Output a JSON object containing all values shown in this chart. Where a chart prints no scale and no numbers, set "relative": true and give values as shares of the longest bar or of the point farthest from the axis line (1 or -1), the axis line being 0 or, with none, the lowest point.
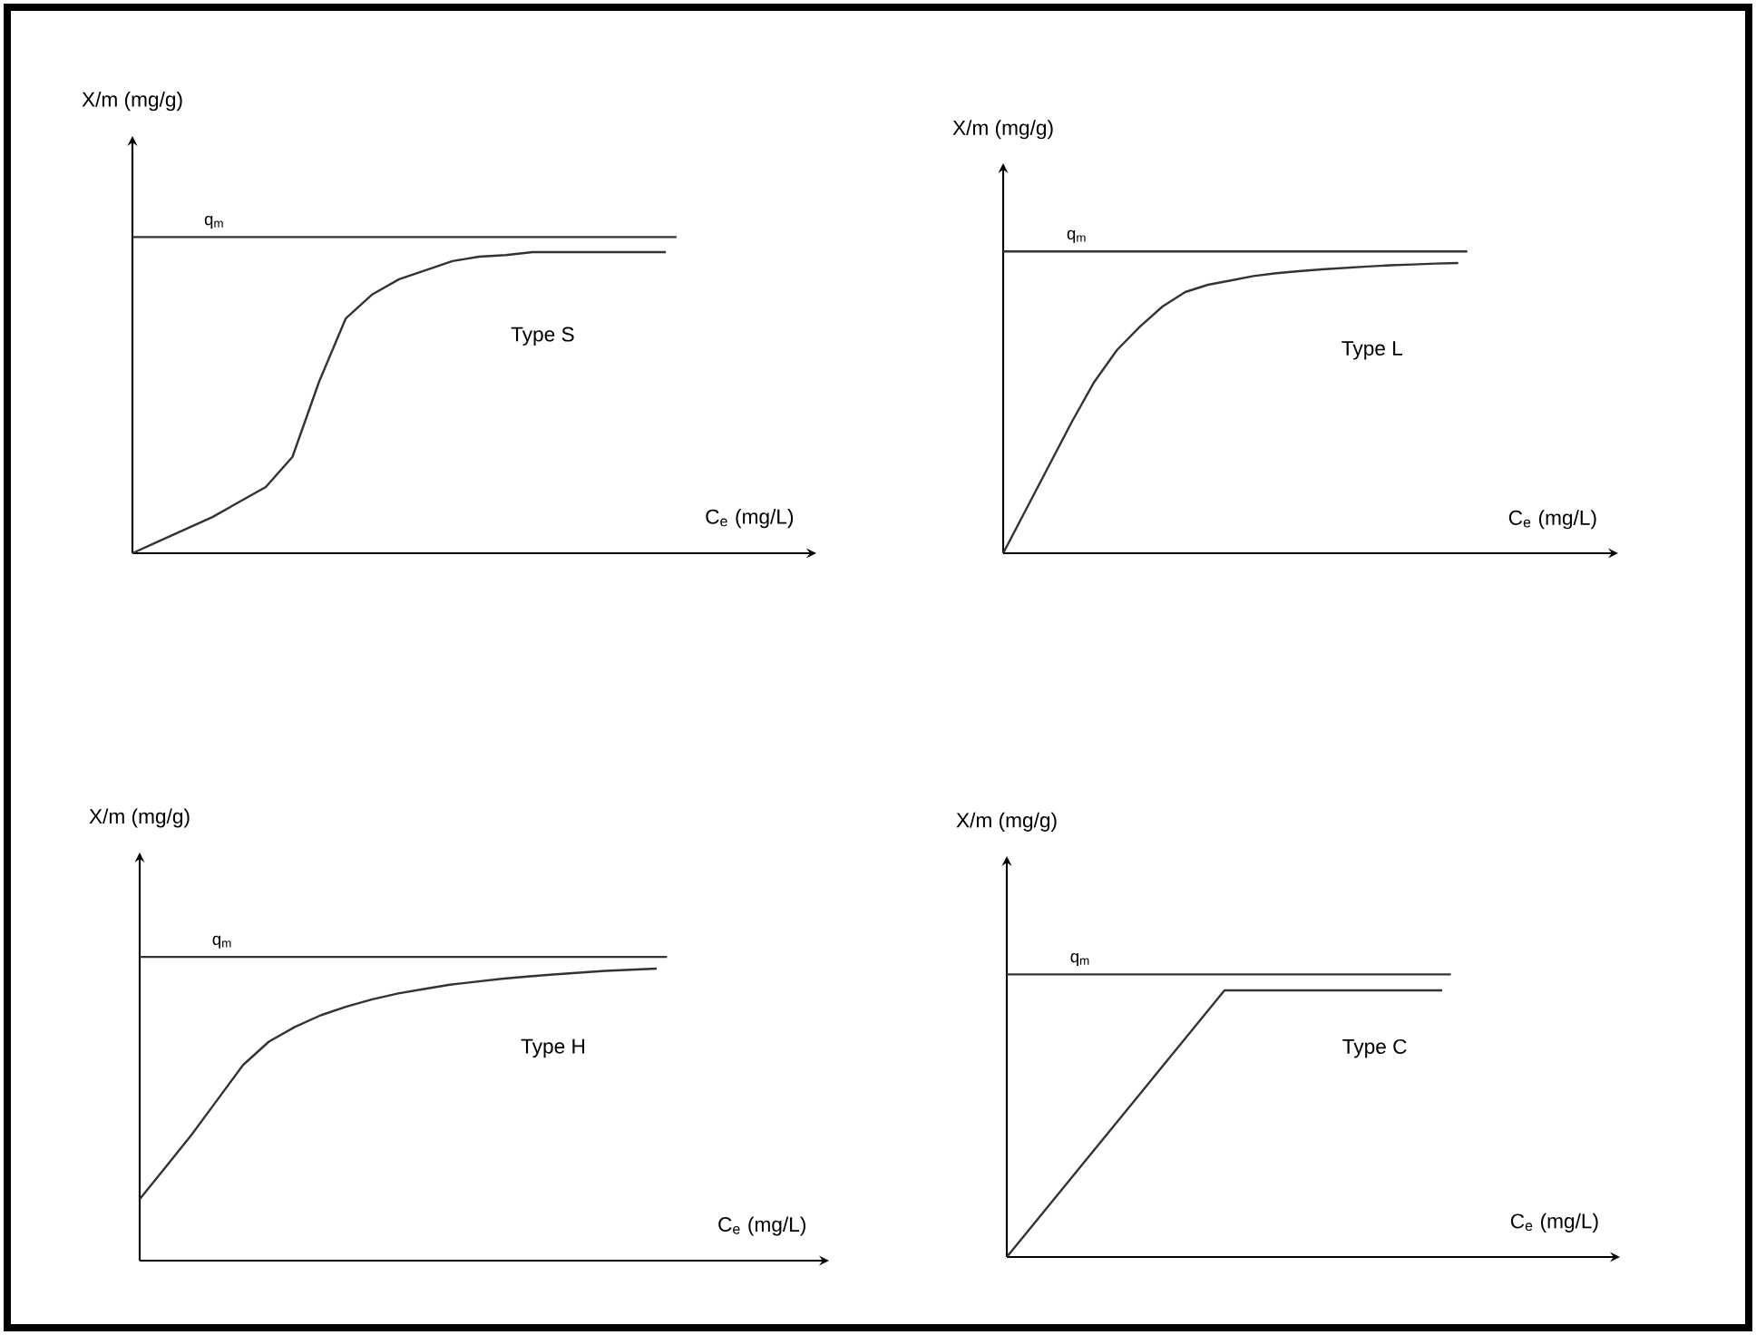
{
  "chart_data": [
    {
      "type": "line",
      "relative": true,
      "xlabel": "C$_{e}$ (mg/L)",
      "ylabel": "X/m (mg/g)",
      "categories": [
        null,
        null,
        null,
        null,
        null,
        null,
        null,
        null,
        null,
        null,
        null,
        null,
        null,
        null,
        null,
        null,
        null,
        null,
        null,
        null,
        null
      ],
      "series": [
        {
          "color": "#333333",
          "values": [
            0,
            0.04,
            0.08,
            0.12,
            0.17,
            0.22,
            0.32,
            0.57,
            0.78,
            0.86,
            0.91,
            0.94,
            0.97,
            0.985,
            0.99,
            1,
            1,
            1,
            1,
            1,
            1
          ]
        }
      ],
      "ref_lines": [
        {
          "axis": "y",
          "value": 1.05,
          "label": "q$_{m}$",
          "color": "#333333"
        }
      ],
      "annotations": [
        "Type S"
      ]
    },
    {
      "type": "line",
      "relative": true,
      "xlabel": "C$_{e}$ (mg/L)",
      "ylabel": "X/m (mg/g)",
      "categories": [
        null,
        null,
        null,
        null,
        null,
        null,
        null,
        null,
        null,
        null,
        null,
        null,
        null,
        null,
        null,
        null,
        null,
        null,
        null,
        null,
        null
      ],
      "series": [
        {
          "color": "#333333",
          "values": [
            0,
            0.15,
            0.3,
            0.45,
            0.59,
            0.7,
            0.78,
            0.85,
            0.9,
            0.925,
            0.94,
            0.955,
            0.965,
            0.972,
            0.978,
            0.983,
            0.988,
            0.992,
            0.995,
            0.998,
            1
          ]
        }
      ],
      "ref_lines": [
        {
          "axis": "y",
          "value": 1.04,
          "label": "q$_{m}$",
          "color": "#333333"
        }
      ],
      "annotations": [
        "Type L"
      ]
    },
    {
      "type": "line",
      "relative": true,
      "xlabel": "C$_{e}$ (mg/L)",
      "ylabel": "X/m (mg/g)",
      "categories": [
        null,
        null,
        null,
        null,
        null,
        null,
        null,
        null,
        null,
        null,
        null,
        null,
        null,
        null,
        null,
        null,
        null,
        null,
        null,
        null,
        null
      ],
      "series": [
        {
          "color": "#333333",
          "values": [
            0.21,
            0.32,
            0.43,
            0.55,
            0.67,
            0.75,
            0.8,
            0.84,
            0.87,
            0.895,
            0.915,
            0.93,
            0.945,
            0.955,
            0.965,
            0.973,
            0.98,
            0.986,
            0.992,
            0.996,
            1
          ]
        }
      ],
      "ref_lines": [
        {
          "axis": "y",
          "value": 1.04,
          "label": "q$_{m}$",
          "color": "#333333"
        }
      ],
      "annotations": [
        "Type H"
      ]
    },
    {
      "type": "line",
      "relative": true,
      "xlabel": "C$_{e}$ (mg/L)",
      "ylabel": "X/m (mg/g)",
      "categories": [
        null,
        null,
        null,
        null,
        null,
        null,
        null,
        null,
        null,
        null,
        null,
        null,
        null,
        null,
        null,
        null,
        null
      ],
      "series": [
        {
          "color": "#333333",
          "values": [
            0,
            0.125,
            0.25,
            0.375,
            0.5,
            0.625,
            0.75,
            0.875,
            1,
            1,
            1,
            1,
            1,
            1,
            1,
            1,
            1
          ]
        }
      ],
      "ref_lines": [
        {
          "axis": "y",
          "value": 1.06,
          "label": "q$_{m}$",
          "color": "#333333"
        }
      ],
      "annotations": [
        "Type C"
      ]
    }
  ]
}
